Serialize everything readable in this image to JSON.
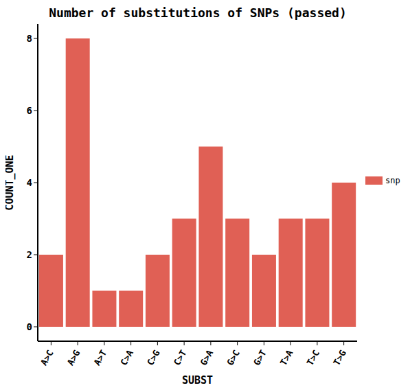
{
  "chart_data": {
    "type": "bar",
    "title": "Number of substitutions of SNPs (passed)",
    "x_label": "SUBST",
    "y_label": "COUNT_ONE",
    "categories": [
      "A>C",
      "A>G",
      "A>T",
      "C>A",
      "C>G",
      "C>T",
      "G>A",
      "G>C",
      "G>T",
      "T>A",
      "T>C",
      "T>G"
    ],
    "series": [
      {
        "name": "snp",
        "color": "#e06055",
        "values": [
          2,
          8,
          1,
          1,
          2,
          3,
          5,
          3,
          2,
          3,
          3,
          4
        ]
      }
    ],
    "ylim": [
      -0.4,
      8.4
    ],
    "yticks": [
      0,
      2,
      4,
      6,
      8
    ],
    "grid": false,
    "legend": "right"
  }
}
